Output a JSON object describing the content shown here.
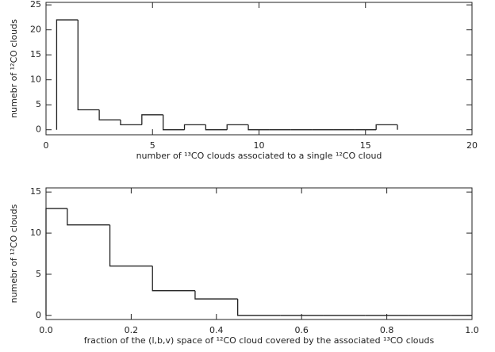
{
  "chart_data": [
    {
      "type": "histogram",
      "xlabel": "number of ¹³CO clouds associated to a single ¹²CO cloud",
      "ylabel": "numebr of ¹²CO clouds",
      "bins": [
        0.5,
        1.5,
        2.5,
        3.5,
        4.5,
        5.5,
        6.5,
        7.5,
        8.5,
        9.5,
        10.5,
        11.5,
        12.5,
        13.5,
        14.5,
        15.5,
        16.5
      ],
      "values": [
        22,
        4,
        2,
        1,
        3,
        0,
        1,
        0,
        1,
        0,
        0,
        0,
        0,
        0,
        0,
        1
      ],
      "xlim": [
        0,
        20
      ],
      "xticks": [
        0,
        5,
        10,
        15,
        20
      ],
      "ylim": [
        -1,
        25.5
      ],
      "yticks": [
        0,
        5,
        10,
        15,
        20,
        25
      ],
      "color": "#222222"
    },
    {
      "type": "histogram",
      "xlabel": "fraction of the (l,b,v) space of ¹²CO cloud covered by the associated ¹³CO clouds",
      "ylabel": "numebr of ¹²CO clouds",
      "bins": [
        0,
        0.05,
        0.15,
        0.25,
        0.35,
        0.45,
        0.55,
        0.65,
        0.75,
        0.85,
        0.95,
        1.0
      ],
      "values": [
        13,
        11,
        6,
        3,
        2,
        0,
        0,
        0,
        0,
        0,
        0
      ],
      "xlim": [
        0,
        1
      ],
      "xticks": [
        {
          "value": 0,
          "label": "0.0"
        },
        0.2,
        0.4,
        0.6,
        0.8,
        {
          "value": 1,
          "label": "1.0"
        }
      ],
      "ylim": [
        -0.5,
        15.5
      ],
      "yticks": [
        0,
        5,
        10,
        15
      ],
      "color": "#222222"
    }
  ]
}
